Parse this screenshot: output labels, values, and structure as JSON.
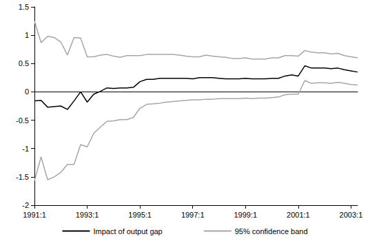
{
  "chart_data": {
    "type": "line",
    "categories": [
      "1991:1",
      null,
      null,
      null,
      null,
      null,
      null,
      null,
      "1993:1",
      null,
      null,
      null,
      null,
      null,
      null,
      null,
      "1995:1",
      null,
      null,
      null,
      null,
      null,
      null,
      null,
      "1997:1",
      null,
      null,
      null,
      null,
      null,
      null,
      null,
      "1999:1",
      null,
      null,
      null,
      null,
      null,
      null,
      null,
      "2001:1",
      null,
      null,
      null,
      null,
      null,
      null,
      null,
      "2003:1",
      null
    ],
    "series": [
      {
        "name": "Impact of output gap",
        "color": "#000000",
        "values": [
          -0.16,
          -0.15,
          -0.27,
          -0.26,
          -0.25,
          -0.31,
          -0.16,
          0.0,
          -0.18,
          -0.04,
          0.01,
          0.07,
          0.06,
          0.07,
          0.07,
          0.08,
          0.18,
          0.22,
          0.22,
          0.24,
          0.24,
          0.24,
          0.24,
          0.24,
          0.23,
          0.25,
          0.25,
          0.25,
          0.24,
          0.23,
          0.23,
          0.23,
          0.24,
          0.23,
          0.23,
          0.23,
          0.24,
          0.24,
          0.28,
          0.3,
          0.28,
          0.46,
          0.42,
          0.42,
          0.42,
          0.41,
          0.42,
          0.39,
          0.37,
          0.35
        ]
      },
      {
        "name": "95% confidence band",
        "color": "#a6a6a6",
        "values": [
          1.25,
          0.87,
          0.98,
          0.96,
          0.88,
          0.65,
          0.96,
          0.95,
          0.62,
          0.62,
          0.65,
          0.66,
          0.63,
          0.61,
          0.64,
          0.64,
          0.64,
          0.66,
          0.66,
          0.66,
          0.66,
          0.66,
          0.65,
          0.63,
          0.62,
          0.62,
          0.65,
          0.63,
          0.62,
          0.61,
          0.59,
          0.59,
          0.6,
          0.58,
          0.58,
          0.58,
          0.6,
          0.6,
          0.64,
          0.64,
          0.63,
          0.73,
          0.7,
          0.69,
          0.69,
          0.67,
          0.68,
          0.64,
          0.62,
          0.6
        ]
      },
      {
        "name": "95% confidence band",
        "color": "#a6a6a6",
        "values": [
          -1.57,
          -1.15,
          -1.55,
          -1.5,
          -1.42,
          -1.28,
          -1.28,
          -0.93,
          -0.97,
          -0.73,
          -0.62,
          -0.52,
          -0.51,
          -0.49,
          -0.49,
          -0.45,
          -0.29,
          -0.22,
          -0.21,
          -0.2,
          -0.18,
          -0.17,
          -0.16,
          -0.15,
          -0.14,
          -0.14,
          -0.13,
          -0.13,
          -0.12,
          -0.12,
          -0.12,
          -0.12,
          -0.11,
          -0.12,
          -0.11,
          -0.11,
          -0.1,
          -0.09,
          -0.05,
          -0.04,
          -0.04,
          0.2,
          0.15,
          0.16,
          0.16,
          0.15,
          0.17,
          0.15,
          0.13,
          0.12
        ]
      }
    ],
    "ylim": [
      -2,
      1.5
    ],
    "yticks": [
      -2,
      -1.5,
      -1,
      -0.5,
      0,
      0.5,
      1,
      1.5
    ],
    "grid": false,
    "legend": "bottom"
  }
}
